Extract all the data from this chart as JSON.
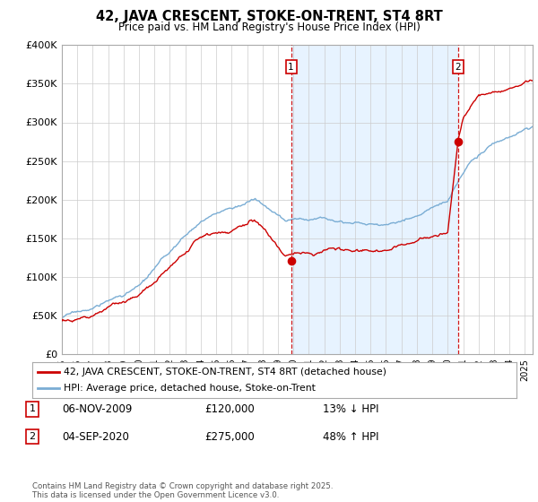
{
  "title": "42, JAVA CRESCENT, STOKE-ON-TRENT, ST4 8RT",
  "subtitle": "Price paid vs. HM Land Registry's House Price Index (HPI)",
  "ylim": [
    0,
    400000
  ],
  "xlim_start": 1995.0,
  "xlim_end": 2025.5,
  "legend_line1": "42, JAVA CRESCENT, STOKE-ON-TRENT, ST4 8RT (detached house)",
  "legend_line2": "HPI: Average price, detached house, Stoke-on-Trent",
  "transaction1_date": "06-NOV-2009",
  "transaction1_price": "£120,000",
  "transaction1_hpi": "13% ↓ HPI",
  "transaction2_date": "04-SEP-2020",
  "transaction2_price": "£275,000",
  "transaction2_hpi": "48% ↑ HPI",
  "transaction1_x": 2009.85,
  "transaction1_y": 120000,
  "transaction2_x": 2020.67,
  "transaction2_y": 275000,
  "footnote": "Contains HM Land Registry data © Crown copyright and database right 2025.\nThis data is licensed under the Open Government Licence v3.0.",
  "color_red": "#cc0000",
  "color_blue": "#7aadd4",
  "color_vline": "#cc0000",
  "shade_color": "#ddeeff",
  "background": "#ffffff"
}
